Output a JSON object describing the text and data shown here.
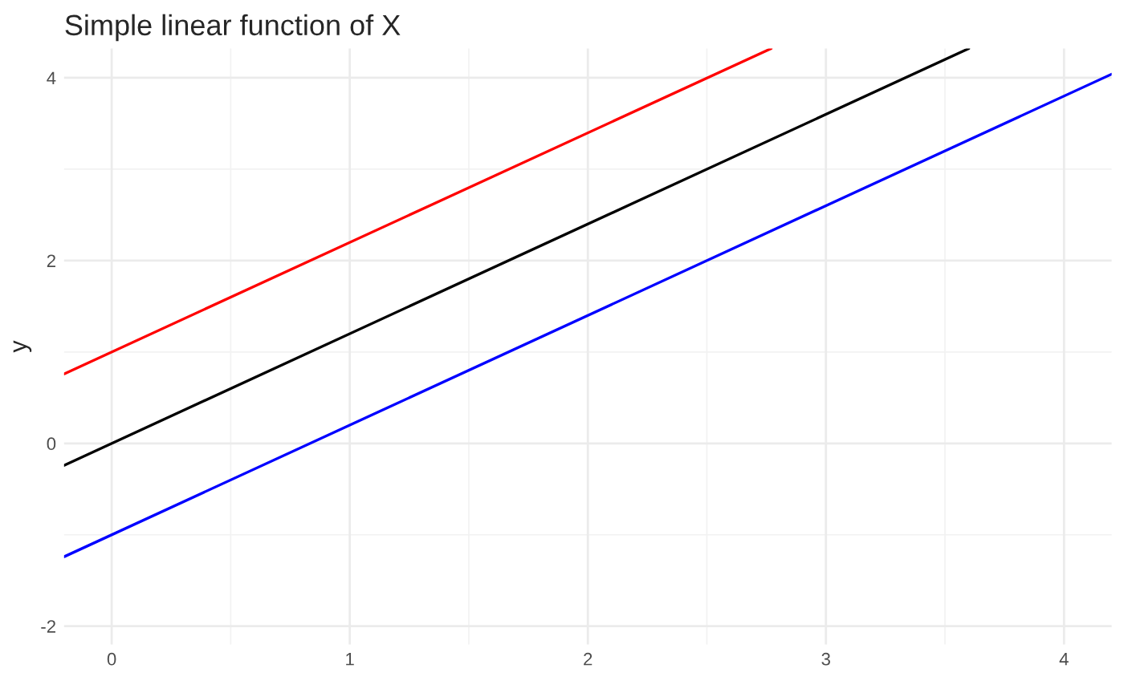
{
  "chart_data": {
    "type": "line",
    "title": "Simple linear function of X",
    "ylabel": "y",
    "series": [
      {
        "color": "#ff0000",
        "x": [
          -0.2,
          2.77
        ],
        "values": [
          0.76,
          4.32
        ]
      },
      {
        "color": "#000000",
        "x": [
          -0.2,
          3.6
        ],
        "values": [
          -0.24,
          4.32
        ]
      },
      {
        "color": "#0000ff",
        "x": [
          -0.2,
          4.2
        ],
        "values": [
          -1.24,
          4.04
        ]
      }
    ],
    "xlim": [
      -0.2,
      4.2
    ],
    "ylim": [
      -2.2,
      4.32
    ],
    "xticks": [
      0,
      1,
      2,
      3,
      4
    ],
    "yticks": [
      -2,
      0,
      2,
      4
    ],
    "grid": true,
    "legend": false,
    "marker": "none",
    "line_style": "solid"
  }
}
